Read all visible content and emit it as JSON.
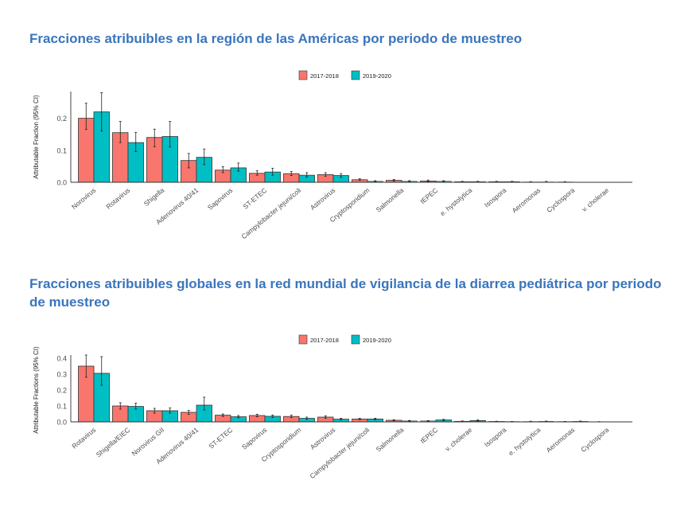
{
  "titles": {
    "chart1": "Fracciones atribuibles en la región de las Américas por periodo de muestreo",
    "chart2": "Fracciones atribuibles globales en la red mundial de vigilancia de la diarrea pediátrica por periodo de muestreo"
  },
  "colors": {
    "series1": "#f8766d",
    "series2": "#00bfc4",
    "border": "#333333",
    "title": "#3a75bd"
  },
  "chart_data": [
    {
      "type": "bar",
      "title": "Fracciones atribuibles en la región de las Américas por periodo de muestreo",
      "xlabel": "",
      "ylabel": "Attributable Fraction (95% CI)",
      "ylim": [
        0,
        0.28
      ],
      "yticks": [
        0.0,
        0.1,
        0.2
      ],
      "ytick_labels": [
        "0.0",
        "0.1",
        "0.2"
      ],
      "legend_position": "top-center",
      "grid": false,
      "categories": [
        "Norovirus",
        "Rotavirus",
        "Shigella",
        "Adenovirus 40/41",
        "Sapovirus",
        "ST-ETEC",
        "Campylobacter jejuni/coli",
        "Astrovirus",
        "Cryptosporidium",
        "Salmonella",
        "tEPEC",
        "e. hystolytica",
        "Isospora",
        "Aeromonas",
        "Cyclospora",
        "v. cholerae"
      ],
      "series": [
        {
          "name": "2017-2018",
          "values": [
            0.2,
            0.155,
            0.14,
            0.068,
            0.038,
            0.028,
            0.027,
            0.024,
            0.008,
            0.006,
            0.004,
            0.002,
            0.002,
            0.001,
            0.001,
            0.0
          ],
          "ci_low": [
            0.165,
            0.124,
            0.111,
            0.045,
            0.03,
            0.022,
            0.021,
            0.019,
            0.006,
            0.004,
            0.002,
            0.001,
            0.001,
            0.0,
            0.0,
            0.0
          ],
          "ci_high": [
            0.247,
            0.19,
            0.166,
            0.09,
            0.049,
            0.036,
            0.034,
            0.03,
            0.011,
            0.009,
            0.007,
            0.003,
            0.003,
            0.002,
            0.002,
            0.0
          ]
        },
        {
          "name": "2019-2020",
          "values": [
            0.22,
            0.124,
            0.143,
            0.078,
            0.045,
            0.032,
            0.022,
            0.021,
            0.003,
            0.003,
            0.003,
            0.002,
            0.002,
            0.001,
            0.0,
            0.0
          ],
          "ci_low": [
            0.16,
            0.096,
            0.11,
            0.055,
            0.035,
            0.022,
            0.016,
            0.015,
            0.002,
            0.002,
            0.002,
            0.001,
            0.001,
            0.0,
            0.0,
            0.0
          ],
          "ci_high": [
            0.28,
            0.156,
            0.19,
            0.104,
            0.06,
            0.044,
            0.03,
            0.027,
            0.005,
            0.005,
            0.005,
            0.003,
            0.003,
            0.003,
            0.0,
            0.0
          ]
        }
      ]
    },
    {
      "type": "bar",
      "title": "Fracciones atribuibles globales en la red mundial de vigilancia de la diarrea pediátrica por periodo de muestreo",
      "xlabel": "",
      "ylabel": "Attributable Fractions (95% CI)",
      "ylim": [
        0,
        0.42
      ],
      "yticks": [
        0.0,
        0.1,
        0.2,
        0.3,
        0.4
      ],
      "ytick_labels": [
        "0.0",
        "0.1",
        "0.2",
        "0.3",
        "0.4"
      ],
      "legend_position": "top-center",
      "grid": false,
      "categories": [
        "Rotavirus",
        "Shigella/EIEC",
        "Norovirus GII",
        "Adenovirus 40/41",
        "ST-ETEC",
        "Sapovirus",
        "Cryptosporidium",
        "Astrovirus",
        "Campylobacter jejuni/coli",
        "Salmonella",
        "tEPEC",
        "v. cholerae",
        "Isospora",
        "e. hystolytica",
        "Aeromonas",
        "Cyclospora"
      ],
      "series": [
        {
          "name": "2017-2018",
          "values": [
            0.35,
            0.1,
            0.07,
            0.06,
            0.042,
            0.04,
            0.034,
            0.03,
            0.018,
            0.01,
            0.006,
            0.004,
            0.003,
            0.002,
            0.002,
            0.001
          ],
          "ci_low": [
            0.28,
            0.08,
            0.055,
            0.048,
            0.034,
            0.032,
            0.026,
            0.022,
            0.014,
            0.007,
            0.004,
            0.002,
            0.002,
            0.001,
            0.001,
            0.0
          ],
          "ci_high": [
            0.42,
            0.12,
            0.085,
            0.072,
            0.05,
            0.048,
            0.042,
            0.038,
            0.022,
            0.013,
            0.008,
            0.006,
            0.004,
            0.004,
            0.003,
            0.002
          ]
        },
        {
          "name": "2019-2020",
          "values": [
            0.305,
            0.097,
            0.07,
            0.105,
            0.032,
            0.035,
            0.022,
            0.017,
            0.018,
            0.006,
            0.012,
            0.008,
            0.002,
            0.003,
            0.003,
            0.0
          ],
          "ci_low": [
            0.23,
            0.08,
            0.055,
            0.075,
            0.026,
            0.028,
            0.016,
            0.013,
            0.014,
            0.004,
            0.008,
            0.005,
            0.001,
            0.002,
            0.002,
            0.0
          ],
          "ci_high": [
            0.41,
            0.117,
            0.087,
            0.155,
            0.04,
            0.043,
            0.03,
            0.022,
            0.023,
            0.009,
            0.016,
            0.012,
            0.003,
            0.005,
            0.005,
            0.0
          ]
        }
      ]
    }
  ]
}
